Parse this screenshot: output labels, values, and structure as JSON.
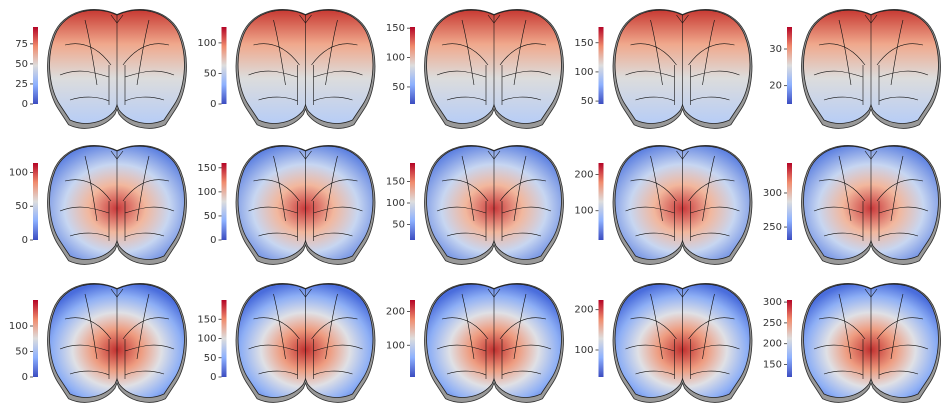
{
  "chart_data": [
    {
      "type": "heatmap",
      "clim": [
        0,
        96
      ],
      "cticks": [
        0,
        25,
        50,
        75
      ]
    },
    {
      "type": "heatmap",
      "clim": [
        0,
        126
      ],
      "cticks": [
        0,
        50,
        100
      ]
    },
    {
      "type": "heatmap",
      "clim": [
        21,
        152
      ],
      "cticks": [
        50,
        100,
        150
      ]
    },
    {
      "type": "heatmap",
      "clim": [
        45,
        177
      ],
      "cticks": [
        50,
        100,
        150
      ]
    },
    {
      "type": "heatmap",
      "clim": [
        15,
        36
      ],
      "cticks": [
        20,
        30
      ]
    },
    {
      "type": "heatmap",
      "clim": [
        0,
        114
      ],
      "cticks": [
        0,
        50,
        100
      ]
    },
    {
      "type": "heatmap",
      "clim": [
        0,
        160
      ],
      "cticks": [
        0,
        50,
        100,
        150
      ]
    },
    {
      "type": "heatmap",
      "clim": [
        14,
        193
      ],
      "cticks": [
        50,
        100,
        150
      ]
    },
    {
      "type": "heatmap",
      "clim": [
        19,
        232
      ],
      "cticks": [
        100,
        200
      ]
    },
    {
      "type": "heatmap",
      "clim": [
        231,
        344
      ],
      "cticks": [
        250,
        300
      ]
    },
    {
      "type": "heatmap",
      "clim": [
        0,
        151
      ],
      "cticks": [
        0,
        50,
        100
      ]
    },
    {
      "type": "heatmap",
      "clim": [
        0,
        200
      ],
      "cticks": [
        0,
        50,
        100,
        150
      ]
    },
    {
      "type": "heatmap",
      "clim": [
        6,
        234
      ],
      "cticks": [
        100,
        200
      ]
    },
    {
      "type": "heatmap",
      "clim": [
        33,
        224
      ],
      "cticks": [
        100,
        200
      ]
    },
    {
      "type": "heatmap",
      "clim": [
        120,
        305
      ],
      "cticks": [
        150,
        200,
        250,
        300
      ]
    }
  ]
}
